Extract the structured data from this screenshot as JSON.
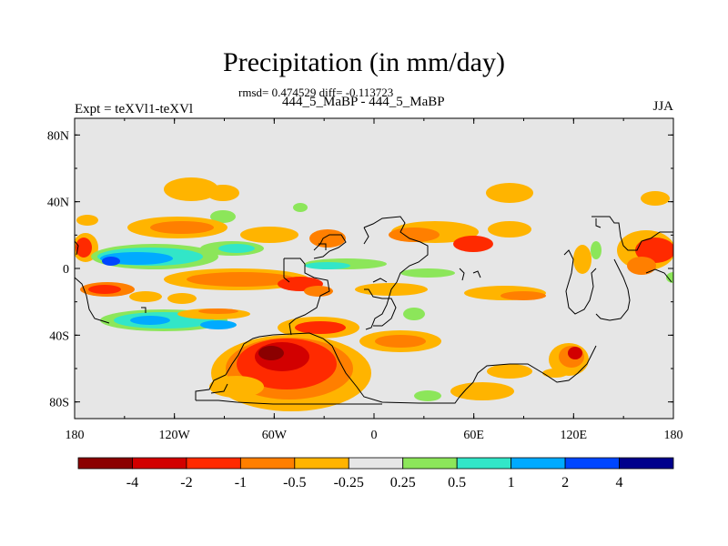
{
  "header": {
    "title": "Precipitation (in mm/day)",
    "stats": "rmsd= 0.474529 diff= -0.113723",
    "case": "444_5_MaBP - 444_5_MaBP",
    "experiment": "Expt = teXVl1-teXVl",
    "season": "JJA"
  },
  "chart_data": {
    "type": "heatmap",
    "variable": "Precipitation difference",
    "units": "mm/day",
    "x_ticks": [
      "180",
      "120W",
      "60W",
      "0",
      "60E",
      "120E",
      "180"
    ],
    "x_tick_values": [
      -180,
      -120,
      -60,
      0,
      60,
      120,
      180
    ],
    "y_ticks": [
      "80N",
      "40N",
      "0",
      "40S",
      "80S"
    ],
    "y_tick_values": [
      80,
      40,
      0,
      -40,
      -80
    ],
    "xlim": [
      -180,
      180
    ],
    "ylim": [
      -90,
      90
    ],
    "colorbar": {
      "levels": [
        "-4",
        "-2",
        "-1",
        "-0.5",
        "-0.25",
        "0.25",
        "0.5",
        "1",
        "2",
        "4"
      ],
      "colors": [
        "#8b0000",
        "#d20000",
        "#ff2a00",
        "#ff7f00",
        "#ffb400",
        "#e6e6e6",
        "#8ce65a",
        "#32e6c8",
        "#00aaff",
        "#0046ff",
        "#00008c"
      ]
    }
  },
  "colors": {
    "background_field": "#e6e6e6",
    "coastline": "#000000"
  }
}
